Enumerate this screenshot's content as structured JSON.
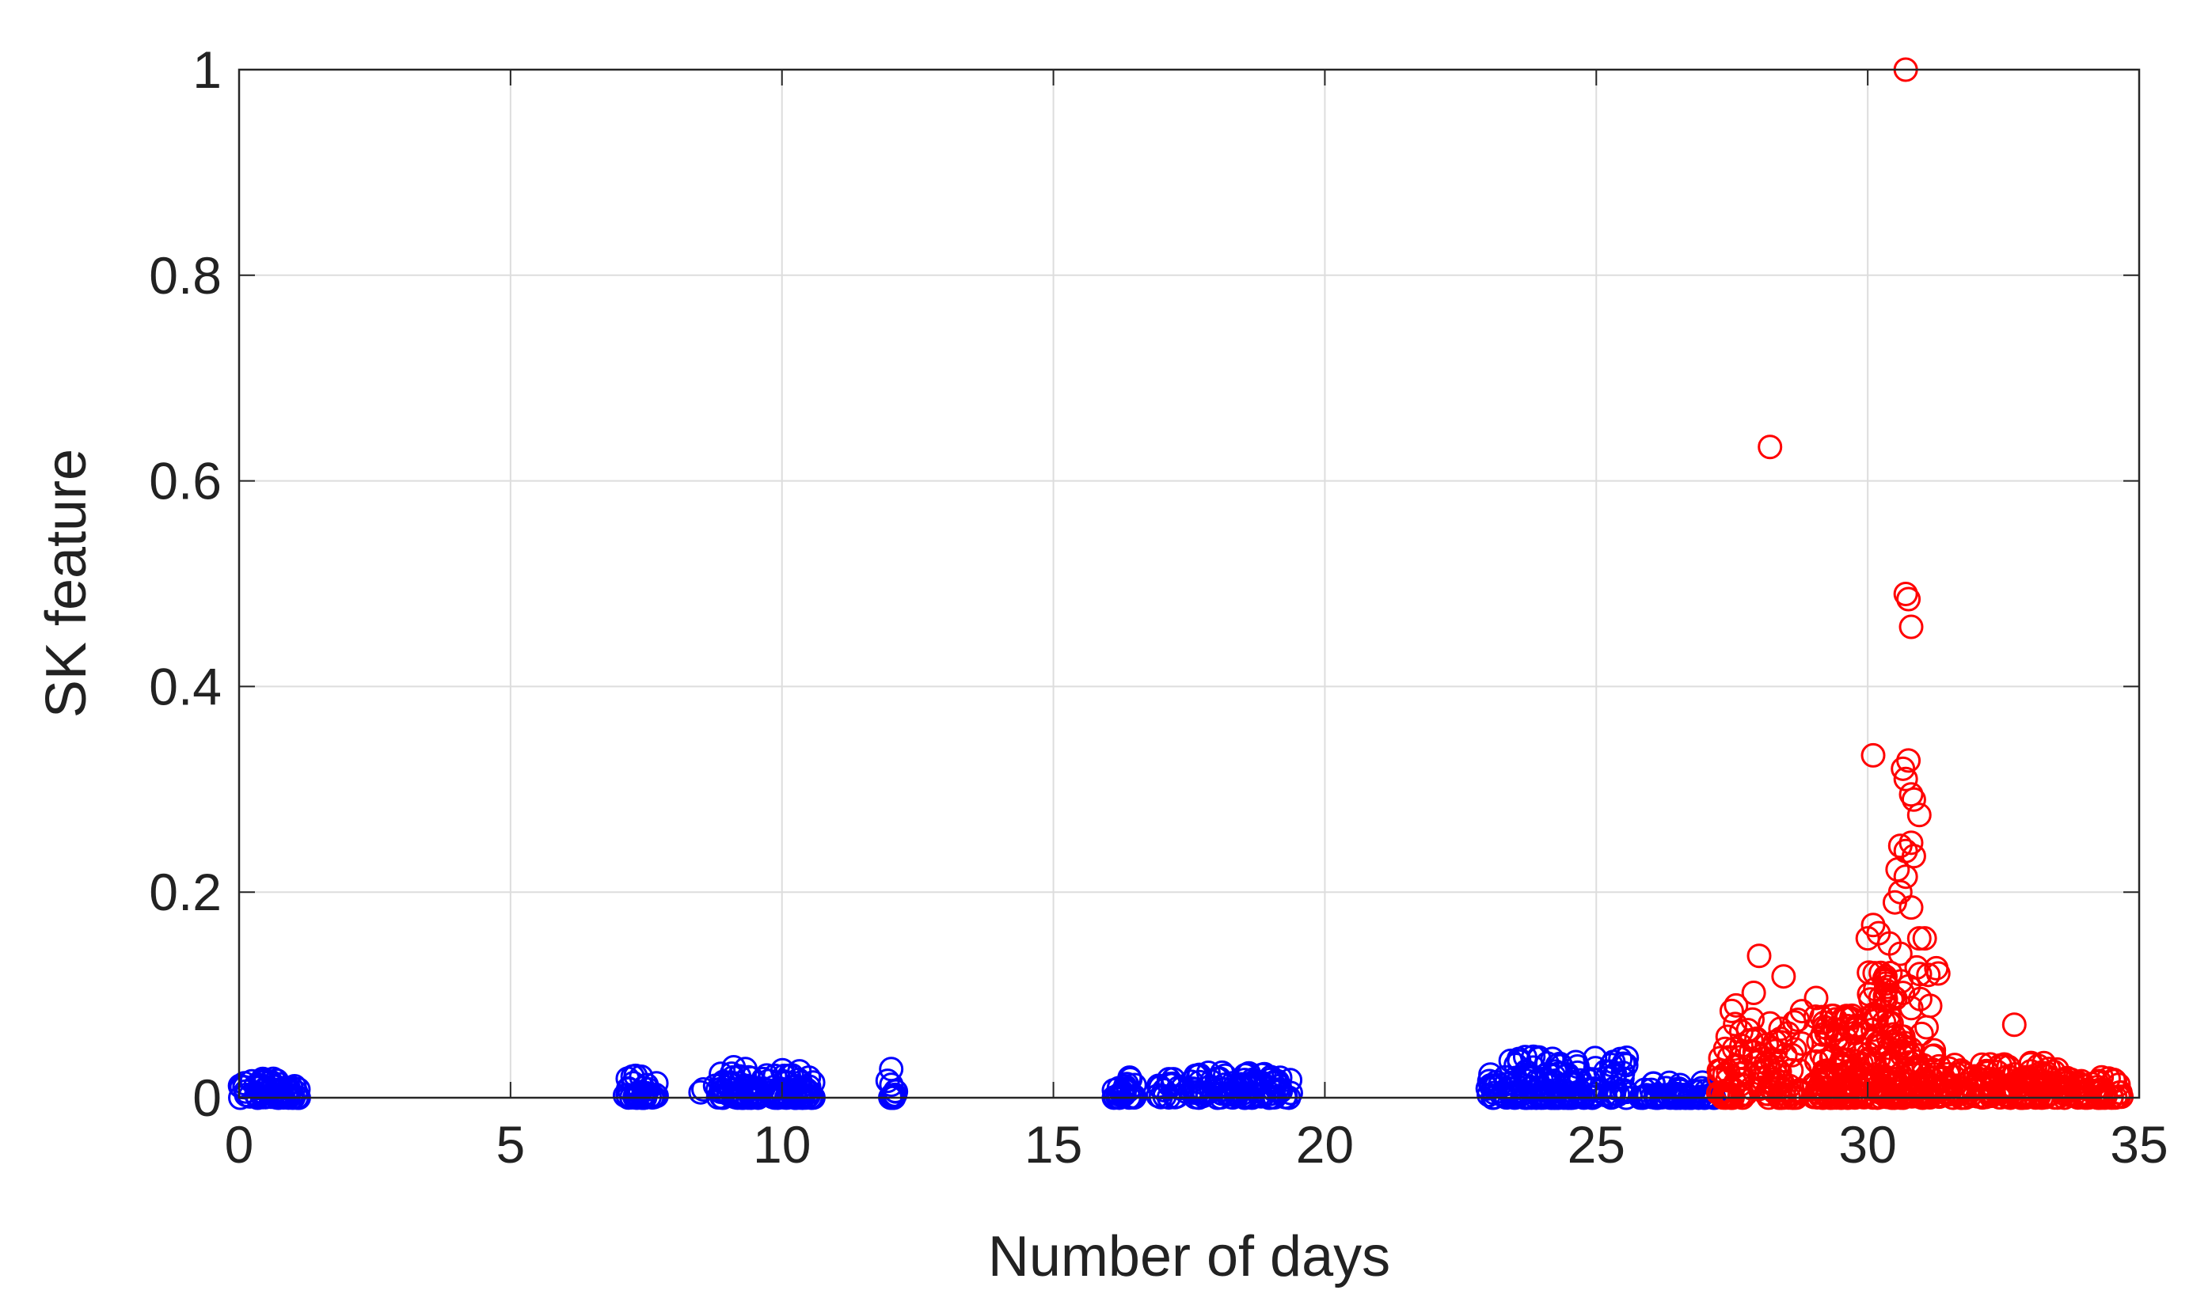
{
  "chart_data": {
    "type": "scatter",
    "title": "",
    "xlabel": "Number of days",
    "ylabel": "SK feature",
    "xlim": [
      0,
      35
    ],
    "ylim": [
      0,
      1
    ],
    "xticks": [
      "0",
      "5",
      "10",
      "15",
      "20",
      "25",
      "30",
      "35"
    ],
    "yticks": [
      "0",
      "0.2",
      "0.4",
      "0.6",
      "0.8",
      "1"
    ],
    "grid": true,
    "legend": "none",
    "marker": "open-circle",
    "series": [
      {
        "color": "#0000ff",
        "clusters": [
          {
            "x_range": [
              0.0,
              1.1
            ],
            "y_max": 0.02,
            "count": 60
          },
          {
            "x_range": [
              7.1,
              7.7
            ],
            "y_max": 0.025,
            "count": 35
          },
          {
            "x_range": [
              8.5,
              10.6
            ],
            "y_max": 0.03,
            "count": 110
          },
          {
            "x_range": [
              11.9,
              12.1
            ],
            "y_max": 0.035,
            "count": 12
          },
          {
            "x_range": [
              16.1,
              16.5
            ],
            "y_max": 0.02,
            "count": 25
          },
          {
            "x_range": [
              16.9,
              19.4
            ],
            "y_max": 0.025,
            "count": 110
          },
          {
            "x_range": [
              23.0,
              25.6
            ],
            "y_max": 0.04,
            "count": 150
          },
          {
            "x_range": [
              25.8,
              27.2
            ],
            "y_max": 0.015,
            "count": 60
          }
        ]
      },
      {
        "color": "#ff0000",
        "points": [
          [
            28.2,
            0.633
          ],
          [
            30.7,
            1.0
          ],
          [
            30.7,
            0.49
          ],
          [
            30.75,
            0.485
          ],
          [
            30.8,
            0.458
          ],
          [
            30.1,
            0.333
          ],
          [
            30.65,
            0.32
          ],
          [
            30.75,
            0.328
          ],
          [
            30.7,
            0.31
          ],
          [
            30.8,
            0.295
          ],
          [
            30.85,
            0.29
          ],
          [
            30.95,
            0.275
          ],
          [
            30.6,
            0.245
          ],
          [
            30.8,
            0.248
          ],
          [
            30.7,
            0.24
          ],
          [
            30.85,
            0.235
          ],
          [
            30.55,
            0.222
          ],
          [
            30.7,
            0.215
          ],
          [
            30.6,
            0.2
          ],
          [
            30.5,
            0.19
          ],
          [
            30.8,
            0.185
          ],
          [
            30.1,
            0.168
          ],
          [
            30.2,
            0.16
          ],
          [
            30.0,
            0.155
          ],
          [
            30.95,
            0.155
          ],
          [
            31.05,
            0.155
          ],
          [
            30.4,
            0.15
          ],
          [
            30.6,
            0.14
          ],
          [
            28.0,
            0.138
          ],
          [
            28.45,
            0.118
          ],
          [
            27.9,
            0.102
          ],
          [
            29.05,
            0.097
          ],
          [
            32.7,
            0.071
          ]
        ],
        "clusters": [
          {
            "x_range": [
              27.2,
              28.8
            ],
            "y_max": 0.09,
            "count": 110
          },
          {
            "x_range": [
              29.0,
              30.0
            ],
            "y_max": 0.08,
            "count": 110
          },
          {
            "x_range": [
              30.0,
              31.3
            ],
            "y_max": 0.13,
            "count": 160
          },
          {
            "x_range": [
              31.3,
              33.5
            ],
            "y_max": 0.035,
            "count": 150
          },
          {
            "x_range": [
              33.5,
              34.7
            ],
            "y_max": 0.02,
            "count": 60
          }
        ]
      }
    ]
  }
}
